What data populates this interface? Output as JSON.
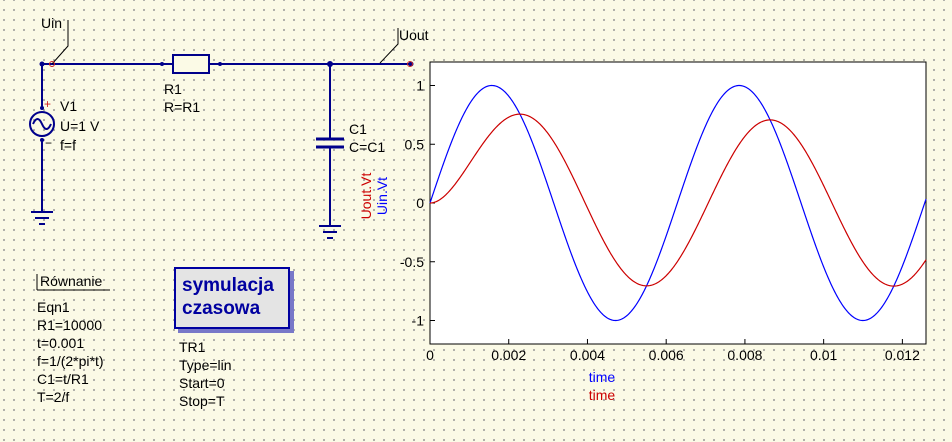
{
  "schematic": {
    "uin_label": "Uin",
    "uout_label": "Uout",
    "v1": {
      "name": "V1",
      "voltage": "U=1 V",
      "freq": "f=f",
      "plus": "+",
      "minus": "−"
    },
    "r1": {
      "name": "R1",
      "value": "R=R1"
    },
    "c1": {
      "name": "C1",
      "value": "C=C1"
    }
  },
  "equation": {
    "title": "Równanie",
    "lines": [
      "Eqn1",
      "R1=10000",
      "t=0.001",
      "f=1/(2*pi*t)",
      "C1=t/R1",
      "T=2/f"
    ]
  },
  "simulation": {
    "button_line1": "symulacja",
    "button_line2": "czasowa",
    "lines": [
      "TR1",
      "Type=lin",
      "Start=0",
      "Stop=T"
    ]
  },
  "chart_data": {
    "type": "line",
    "x_range": [
      0,
      0.0126
    ],
    "y_range": [
      -1.2,
      1.2
    ],
    "x_ticks": [
      "0",
      "0.002",
      "0.004",
      "0.006",
      "0.008",
      "0.01",
      "0.012"
    ],
    "y_ticks": [
      "1",
      "0.5",
      "0",
      "-0.5",
      "-1"
    ],
    "xlabels": [
      "time",
      "time"
    ],
    "ylabels": [
      "Uout.Vt",
      "Uin.Vt"
    ],
    "series": [
      {
        "name": "Uin.Vt",
        "color": "#0000ff",
        "model": "sine",
        "amplitude": 1.0,
        "frequency_hz": 159.15
      },
      {
        "name": "Uout.Vt",
        "color": "#cc0000",
        "model": "rc_lowpass_output",
        "tau_s": 0.001,
        "frequency_hz": 159.15
      }
    ],
    "colors": {
      "uin": "#0000ff",
      "uout": "#cc0000"
    }
  },
  "colors": {
    "wire": "#00008b",
    "component": "#00008b",
    "port_node": "#cc2020",
    "sim_text": "#0000a0"
  }
}
